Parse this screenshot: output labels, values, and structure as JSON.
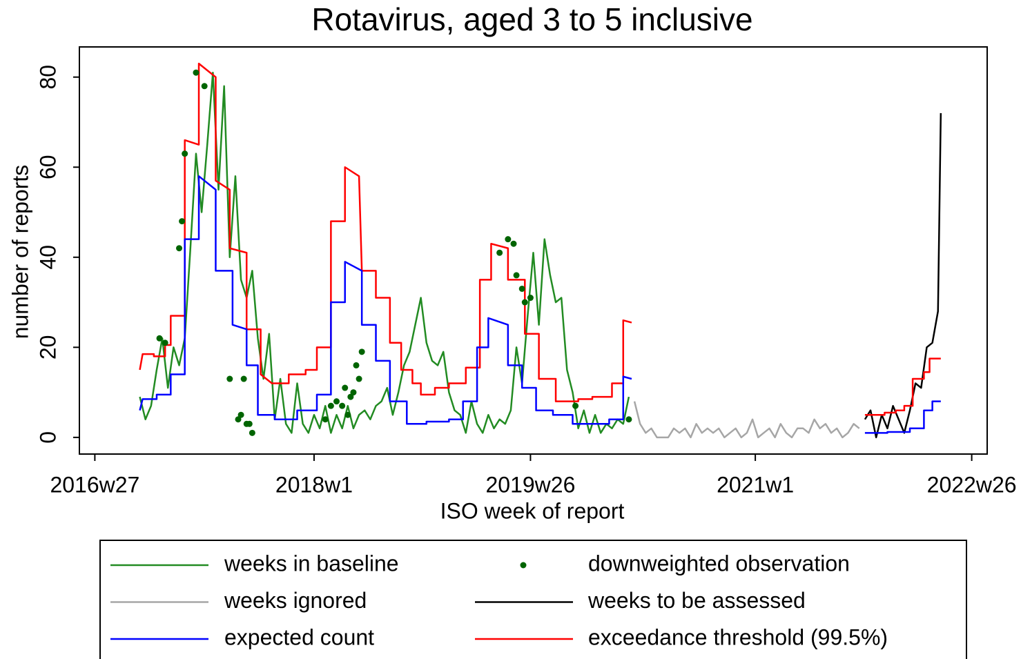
{
  "chart_data": {
    "type": "line",
    "title": "Rotavirus, aged 3 to 5 inclusive",
    "xlabel": "ISO week of report",
    "ylabel": "number of reports",
    "xlim": [
      -5.5,
      317.5
    ],
    "ylim": [
      -3.7,
      86.7
    ],
    "xticks": [
      {
        "value": 0,
        "label": "2016w27"
      },
      {
        "value": 78,
        "label": "2018w1"
      },
      {
        "value": 155,
        "label": "2019w26"
      },
      {
        "value": 235,
        "label": "2021w1"
      },
      {
        "value": 312,
        "label": "2022w26"
      }
    ],
    "yticks": [
      0,
      20,
      40,
      60,
      80
    ],
    "series": [
      {
        "name": "weeks in baseline",
        "type": "line",
        "color": "#228b22",
        "x": [
          16,
          18,
          20,
          22,
          24,
          26,
          28,
          30,
          32,
          34,
          36,
          38,
          40,
          42,
          44,
          46,
          48,
          50,
          52,
          54,
          56,
          58,
          60,
          62,
          64,
          66,
          68,
          70,
          72,
          74,
          76,
          78,
          80,
          82,
          84,
          86,
          88,
          90,
          92,
          94,
          96,
          98,
          100,
          102,
          104,
          106,
          108,
          110,
          112,
          114,
          116,
          118,
          120,
          122,
          124,
          126,
          128,
          130,
          132,
          134,
          136,
          138,
          140,
          142,
          144,
          146,
          148,
          150,
          152,
          154,
          156,
          158,
          160,
          162,
          164,
          166,
          168,
          170,
          172,
          174,
          176,
          178,
          180,
          182,
          184,
          186,
          188,
          190
        ],
        "values": [
          9,
          4,
          7,
          15,
          22,
          11,
          20,
          16,
          22,
          42,
          63,
          50,
          65,
          81,
          55,
          78,
          40,
          58,
          35,
          31,
          37,
          22,
          13,
          23,
          4,
          13,
          3,
          1,
          12,
          3,
          1,
          5,
          2,
          7,
          1,
          5,
          2,
          7,
          2,
          5,
          6,
          4,
          7,
          8,
          11,
          5,
          10,
          16,
          19,
          25,
          31,
          21,
          17,
          16,
          19,
          10,
          6,
          5,
          1,
          8,
          3,
          1,
          5,
          2,
          4,
          3,
          6,
          20,
          12,
          27,
          41,
          25,
          44,
          36,
          30,
          31,
          15,
          10,
          2,
          6,
          1,
          5,
          1,
          3,
          2,
          4,
          3,
          9
        ]
      },
      {
        "name": "downweighted observation",
        "type": "scatter",
        "color": "#006400",
        "x": [
          23,
          25,
          30,
          31,
          32,
          36,
          39,
          48,
          51,
          52,
          53,
          54,
          55,
          56,
          82,
          84,
          86,
          88,
          89,
          90,
          91,
          92,
          93,
          94,
          95,
          144,
          147,
          149,
          150,
          152,
          153,
          155,
          171,
          190
        ],
        "values": [
          22,
          21,
          42,
          48,
          63,
          81,
          78,
          13,
          4,
          5,
          13,
          3,
          3,
          1,
          4,
          7,
          8,
          7,
          11,
          5,
          9,
          10,
          16,
          13,
          19,
          41,
          44,
          43,
          36,
          33,
          30,
          31,
          7,
          4
        ]
      },
      {
        "name": "weeks ignored",
        "type": "line",
        "color": "#a6a6a6",
        "x": [
          192,
          194,
          196,
          198,
          200,
          202,
          204,
          206,
          208,
          210,
          212,
          214,
          216,
          218,
          220,
          222,
          224,
          226,
          228,
          230,
          232,
          234,
          236,
          238,
          240,
          242,
          244,
          246,
          248,
          250,
          252,
          254,
          256,
          258,
          260,
          262,
          264,
          266,
          268,
          270,
          272
        ],
        "values": [
          8,
          3,
          1,
          2,
          0,
          0,
          0,
          2,
          1,
          2,
          0,
          3,
          1,
          2,
          1,
          2,
          0,
          1,
          2,
          0,
          1,
          4,
          0,
          1,
          2,
          0,
          3,
          1,
          0,
          2,
          2,
          1,
          4,
          2,
          3,
          1,
          2,
          0,
          1,
          3,
          2
        ]
      },
      {
        "name": "weeks to be assessed",
        "type": "line",
        "color": "#000000",
        "x": [
          274,
          276,
          278,
          280,
          282,
          284,
          286,
          288,
          290,
          292,
          294,
          296,
          298,
          300,
          301
        ],
        "values": [
          4,
          6,
          0,
          5,
          2,
          7,
          4,
          1,
          6,
          12,
          11,
          20,
          21,
          28,
          72
        ]
      },
      {
        "name": "expected count",
        "type": "line",
        "color": "#0000ff",
        "x": [
          16,
          17,
          22,
          22,
          27,
          27,
          32,
          32,
          37,
          37,
          43,
          43,
          49,
          49,
          54,
          54,
          58,
          58,
          64,
          64,
          72,
          72,
          79,
          79,
          84,
          84,
          89,
          89,
          95,
          95,
          100,
          100,
          105,
          105,
          111,
          111,
          118,
          118,
          126,
          126,
          131,
          131,
          136,
          136,
          140,
          140,
          147,
          147,
          152,
          152,
          157,
          157,
          163,
          163,
          170,
          170,
          183,
          183,
          188,
          188,
          191,
          232,
          274,
          282,
          282,
          290,
          290,
          295,
          295,
          298,
          298,
          301
        ],
        "values": [
          6,
          8.5,
          8.5,
          9.5,
          9.5,
          14,
          14,
          44,
          44,
          58,
          55,
          37,
          37,
          25,
          24,
          16,
          16,
          5,
          5,
          4,
          4,
          6,
          6,
          9.5,
          9.5,
          30,
          30,
          39,
          37,
          25,
          25,
          17,
          17,
          8,
          8,
          3,
          3,
          3.5,
          3.5,
          4,
          4,
          8,
          8,
          20,
          20,
          26.5,
          25,
          16,
          16,
          11,
          11,
          6,
          6,
          5,
          5,
          3,
          3,
          4,
          4,
          13.5,
          13,
          null,
          1,
          1,
          1.2,
          1.2,
          2,
          2,
          6,
          6,
          8,
          8
        ]
      },
      {
        "name": "exceedance threshold (99.5%)",
        "type": "line",
        "color": "#ff0000",
        "x": [
          16,
          17,
          21,
          21,
          25,
          25,
          27,
          27,
          32,
          32,
          37,
          37,
          43,
          43,
          48,
          48,
          54,
          54,
          59,
          59,
          63,
          69,
          69,
          75,
          75,
          79,
          79,
          84,
          84,
          89,
          89,
          94,
          95,
          100,
          100,
          105,
          105,
          109,
          109,
          113,
          113,
          116,
          116,
          121,
          121,
          126,
          126,
          132,
          132,
          137,
          137,
          141,
          141,
          147,
          147,
          153,
          153,
          158,
          158,
          164,
          164,
          172,
          172,
          177,
          177,
          184,
          184,
          188,
          188,
          191,
          232,
          274,
          281,
          281,
          285,
          285,
          288,
          288,
          291,
          291,
          295,
          295,
          297,
          297,
          301
        ],
        "values": [
          15,
          18.5,
          18.5,
          18,
          18,
          20.5,
          20.5,
          27,
          27,
          66,
          65,
          83,
          80,
          57,
          55,
          42,
          41,
          24,
          24,
          14,
          12,
          12,
          14,
          14,
          15,
          15,
          20,
          20,
          48,
          48,
          60,
          58,
          37,
          37,
          31,
          31,
          21,
          21,
          15,
          15,
          12,
          12,
          9.5,
          9.5,
          11,
          11,
          12,
          12,
          15.5,
          15.5,
          35,
          35,
          43,
          42,
          35,
          35,
          23,
          23,
          13,
          13,
          8,
          8,
          8.5,
          8.5,
          9,
          9,
          12,
          12,
          26,
          25.5,
          null,
          5,
          5,
          5.5,
          5.5,
          6,
          6,
          7,
          7,
          13,
          13,
          14.5,
          14.5,
          17.5,
          17.5
        ]
      }
    ]
  }
}
